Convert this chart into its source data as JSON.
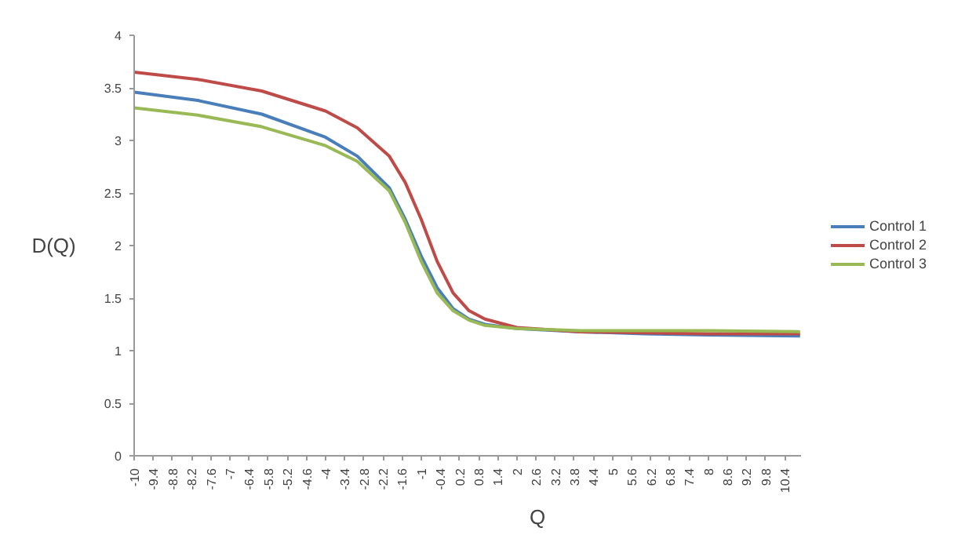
{
  "chart_data": {
    "type": "line",
    "xlabel": "Q",
    "ylabel": "D(Q)",
    "x": [
      -10,
      -8,
      -6,
      -4,
      -3,
      -2,
      -1.5,
      -1,
      -0.5,
      0,
      0.5,
      1,
      2,
      4,
      6,
      8,
      10.88
    ],
    "series": [
      {
        "name": "Control 1",
        "color": "#4a7ebb",
        "values": [
          3.46,
          3.38,
          3.25,
          3.03,
          2.85,
          2.55,
          2.25,
          1.9,
          1.6,
          1.4,
          1.3,
          1.25,
          1.21,
          1.18,
          1.16,
          1.15,
          1.14
        ]
      },
      {
        "name": "Control 2",
        "color": "#be4b48",
        "values": [
          3.65,
          3.58,
          3.47,
          3.28,
          3.12,
          2.85,
          2.6,
          2.25,
          1.85,
          1.55,
          1.38,
          1.3,
          1.22,
          1.18,
          1.17,
          1.16,
          1.16
        ]
      },
      {
        "name": "Control 3",
        "color": "#98b954",
        "values": [
          3.31,
          3.24,
          3.13,
          2.95,
          2.8,
          2.52,
          2.22,
          1.85,
          1.55,
          1.38,
          1.29,
          1.24,
          1.21,
          1.19,
          1.19,
          1.19,
          1.18
        ]
      }
    ],
    "xlim": [
      -10,
      10.9
    ],
    "ylim": [
      0,
      4
    ],
    "xticks": [
      -10,
      -9.4,
      -8.8,
      -8.2,
      -7.6,
      -7,
      -6.4,
      -5.8,
      -5.2,
      -4.6,
      -4,
      -3.4,
      -2.8,
      -2.2,
      -1.6,
      -1,
      -0.4,
      0.2,
      0.8,
      1.4,
      2,
      2.6,
      3.2,
      3.8,
      4.4,
      5,
      5.6,
      6.2,
      6.8,
      7.4,
      8,
      8.6,
      9.2,
      9.8,
      10.4
    ],
    "yticks": [
      0,
      0.5,
      1,
      1.5,
      2,
      2.5,
      3,
      3.5,
      4
    ],
    "grid": false,
    "legend": "right",
    "marker": "none",
    "line_style": "solid"
  }
}
